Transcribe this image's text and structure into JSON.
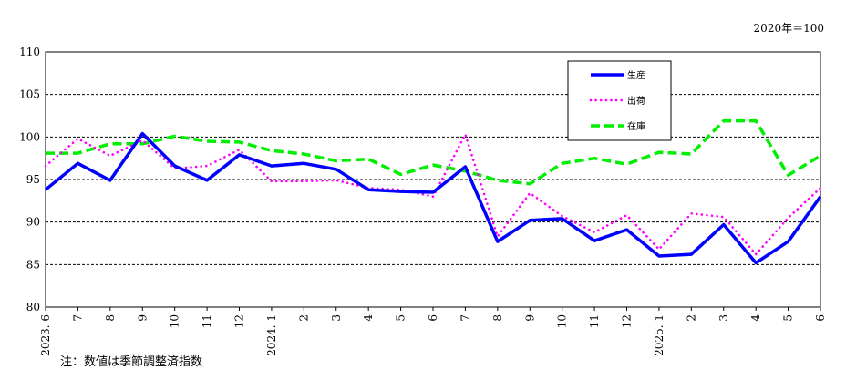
{
  "unit_label": "2020年＝100",
  "note": "注：数値は季節調整済指数",
  "colors": {
    "production": "#0000ff",
    "shipment": "#ff00ff",
    "inventory": "#00ee00"
  },
  "chart_data": {
    "type": "line",
    "title": "",
    "xlabel": "",
    "ylabel": "",
    "ylim": [
      80,
      110
    ],
    "yticks": [
      80,
      85,
      90,
      95,
      100,
      105,
      110
    ],
    "grid": true,
    "legend": "top-right",
    "categories": [
      "2023. 6",
      "7",
      "8",
      "9",
      "10",
      "11",
      "12",
      "2024. 1",
      "2",
      "3",
      "4",
      "5",
      "6",
      "7",
      "8",
      "9",
      "10",
      "11",
      "12",
      "2025. 1",
      "2",
      "3",
      "4",
      "5",
      "6"
    ],
    "series": [
      {
        "name": "生産",
        "key": "production",
        "style": "solid",
        "values": [
          93.8,
          96.9,
          94.9,
          100.4,
          96.6,
          94.9,
          97.9,
          96.6,
          96.9,
          96.2,
          93.8,
          93.6,
          93.5,
          96.5,
          87.7,
          90.2,
          90.4,
          87.8,
          89.1,
          86.0,
          86.2,
          89.7,
          85.2,
          87.7,
          93.0
        ]
      },
      {
        "name": "出荷",
        "key": "shipment",
        "style": "dotted",
        "values": [
          96.6,
          99.8,
          97.8,
          99.6,
          96.3,
          96.6,
          98.5,
          94.8,
          94.8,
          94.9,
          94.0,
          93.8,
          93.0,
          100.3,
          88.3,
          93.4,
          90.7,
          88.8,
          90.8,
          86.8,
          91.0,
          90.6,
          86.2,
          90.5,
          94.0
        ]
      },
      {
        "name": "在庫",
        "key": "inventory",
        "style": "dashed",
        "values": [
          98.1,
          98.1,
          99.2,
          99.2,
          100.1,
          99.5,
          99.4,
          98.4,
          98.0,
          97.2,
          97.4,
          95.6,
          96.7,
          96.0,
          94.9,
          94.5,
          96.9,
          97.5,
          96.8,
          98.2,
          98.0,
          101.9,
          101.9,
          95.5,
          97.8
        ]
      }
    ]
  }
}
